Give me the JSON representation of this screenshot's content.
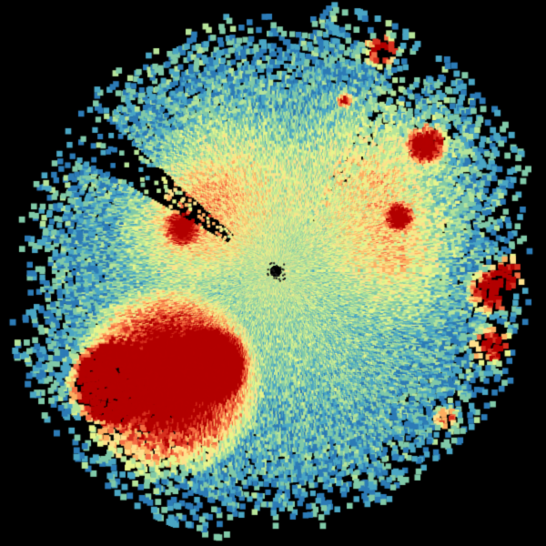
{
  "background": "#000000",
  "colormap": [
    "#2c7bb6",
    "#4aa6c4",
    "#80c9a8",
    "#b6e49a",
    "#e8f58c",
    "#fee08b",
    "#fdae61",
    "#f46d43",
    "#d7301f",
    "#b30000"
  ],
  "center_gap_color": "#1a1a1a"
}
